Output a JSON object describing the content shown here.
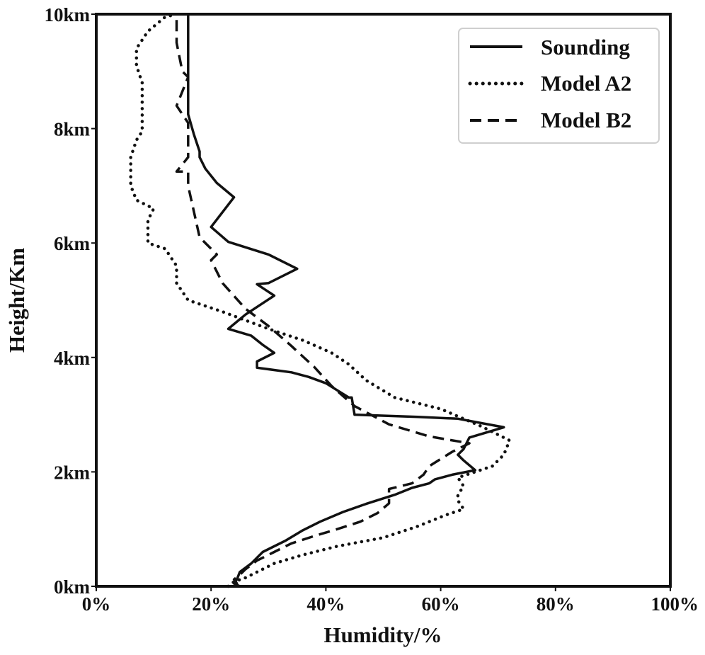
{
  "chart_data": {
    "type": "line",
    "title": "",
    "xlabel": "Humidity/%",
    "ylabel": "Height/Km",
    "xlim": [
      0,
      100
    ],
    "ylim": [
      0,
      10
    ],
    "grid": false,
    "legend_position": "top-right",
    "x_ticks": [
      {
        "value": 0,
        "label": "0%"
      },
      {
        "value": 20,
        "label": "20%"
      },
      {
        "value": 40,
        "label": "40%"
      },
      {
        "value": 60,
        "label": "60%"
      },
      {
        "value": 80,
        "label": "80%"
      },
      {
        "value": 100,
        "label": "100%"
      }
    ],
    "y_ticks": [
      {
        "value": 0,
        "label": "0km"
      },
      {
        "value": 2,
        "label": "2km"
      },
      {
        "value": 4,
        "label": "4km"
      },
      {
        "value": 6,
        "label": "6km"
      },
      {
        "value": 8,
        "label": "8km"
      },
      {
        "value": 10,
        "label": "10km"
      }
    ],
    "series": [
      {
        "name": "Sounding",
        "style": "solid",
        "color": "#111111",
        "points": [
          [
            25,
            0
          ],
          [
            24,
            0.05
          ],
          [
            24.5,
            0.12
          ],
          [
            25,
            0.25
          ],
          [
            27,
            0.4
          ],
          [
            29,
            0.6
          ],
          [
            33,
            0.8
          ],
          [
            36,
            0.98
          ],
          [
            39,
            1.13
          ],
          [
            43,
            1.3
          ],
          [
            47,
            1.44
          ],
          [
            52,
            1.6
          ],
          [
            55,
            1.72
          ],
          [
            58,
            1.8
          ],
          [
            59,
            1.87
          ],
          [
            62,
            1.95
          ],
          [
            66,
            2.03
          ],
          [
            64,
            2.2
          ],
          [
            63,
            2.3
          ],
          [
            64,
            2.4
          ],
          [
            65,
            2.6
          ],
          [
            71,
            2.78
          ],
          [
            63,
            2.93
          ],
          [
            56,
            2.96
          ],
          [
            45,
            3.0
          ],
          [
            44.5,
            3.3
          ],
          [
            44,
            3.3
          ],
          [
            40,
            3.55
          ],
          [
            37,
            3.66
          ],
          [
            34,
            3.74
          ],
          [
            28,
            3.82
          ],
          [
            28,
            3.93
          ],
          [
            31,
            4.08
          ],
          [
            29,
            4.22
          ],
          [
            27,
            4.38
          ],
          [
            23,
            4.5
          ],
          [
            26,
            4.75
          ],
          [
            31,
            5.08
          ],
          [
            28,
            5.28
          ],
          [
            30,
            5.3
          ],
          [
            35,
            5.55
          ],
          [
            30,
            5.8
          ],
          [
            23,
            6.02
          ],
          [
            20,
            6.28
          ],
          [
            24,
            6.8
          ],
          [
            21,
            7.05
          ],
          [
            19,
            7.3
          ],
          [
            18,
            7.5
          ],
          [
            18,
            7.6
          ],
          [
            17,
            7.9
          ],
          [
            16,
            8.25
          ],
          [
            16,
            10.0
          ]
        ]
      },
      {
        "name": "Model A2",
        "style": "dotted",
        "color": "#111111",
        "points": [
          [
            23,
            0
          ],
          [
            24,
            0.08
          ],
          [
            26,
            0.15
          ],
          [
            28,
            0.25
          ],
          [
            31,
            0.4
          ],
          [
            36,
            0.55
          ],
          [
            42,
            0.7
          ],
          [
            50,
            0.85
          ],
          [
            56,
            1.05
          ],
          [
            61,
            1.25
          ],
          [
            64,
            1.35
          ],
          [
            63,
            1.5
          ],
          [
            63,
            1.6
          ],
          [
            64,
            1.75
          ],
          [
            63,
            1.9
          ],
          [
            66,
            2.0
          ],
          [
            69,
            2.1
          ],
          [
            71,
            2.3
          ],
          [
            72,
            2.55
          ],
          [
            67,
            2.8
          ],
          [
            60,
            3.1
          ],
          [
            52,
            3.3
          ],
          [
            47,
            3.6
          ],
          [
            44,
            3.88
          ],
          [
            41,
            4.08
          ],
          [
            36,
            4.3
          ],
          [
            30,
            4.5
          ],
          [
            22,
            4.8
          ],
          [
            16,
            5.0
          ],
          [
            14,
            5.3
          ],
          [
            14,
            5.6
          ],
          [
            12,
            5.9
          ],
          [
            9,
            6.0
          ],
          [
            9,
            6.4
          ],
          [
            10,
            6.6
          ],
          [
            7,
            6.75
          ],
          [
            6,
            7.0
          ],
          [
            6,
            7.5
          ],
          [
            7,
            7.8
          ],
          [
            8,
            7.95
          ],
          [
            8,
            8.4
          ],
          [
            8,
            8.8
          ],
          [
            7,
            9.1
          ],
          [
            7,
            9.4
          ],
          [
            9,
            9.7
          ],
          [
            12,
            9.95
          ],
          [
            14,
            10.0
          ]
        ]
      },
      {
        "name": "Model B2",
        "style": "dashed",
        "color": "#111111",
        "points": [
          [
            24,
            0
          ],
          [
            24.5,
            0.05
          ],
          [
            24,
            0.12
          ],
          [
            25,
            0.2
          ],
          [
            26,
            0.3
          ],
          [
            28,
            0.45
          ],
          [
            31,
            0.6
          ],
          [
            34,
            0.75
          ],
          [
            38,
            0.88
          ],
          [
            42,
            1.0
          ],
          [
            46,
            1.13
          ],
          [
            49,
            1.28
          ],
          [
            51,
            1.45
          ],
          [
            51,
            1.7
          ],
          [
            55,
            1.8
          ],
          [
            57,
            1.95
          ],
          [
            58,
            2.1
          ],
          [
            62,
            2.35
          ],
          [
            65,
            2.5
          ],
          [
            58,
            2.62
          ],
          [
            51,
            2.83
          ],
          [
            45,
            3.15
          ],
          [
            41,
            3.5
          ],
          [
            38,
            3.83
          ],
          [
            34,
            4.2
          ],
          [
            30,
            4.55
          ],
          [
            26,
            4.85
          ],
          [
            22,
            5.3
          ],
          [
            20,
            5.7
          ],
          [
            21,
            5.8
          ],
          [
            18,
            6.1
          ],
          [
            16,
            7.0
          ],
          [
            16,
            7.25
          ],
          [
            14,
            7.25
          ],
          [
            16,
            7.5
          ],
          [
            16,
            7.9
          ],
          [
            16,
            8.1
          ],
          [
            14,
            8.4
          ],
          [
            16,
            8.9
          ],
          [
            15,
            9.0
          ],
          [
            14,
            9.5
          ],
          [
            14,
            10.0
          ]
        ]
      }
    ]
  }
}
